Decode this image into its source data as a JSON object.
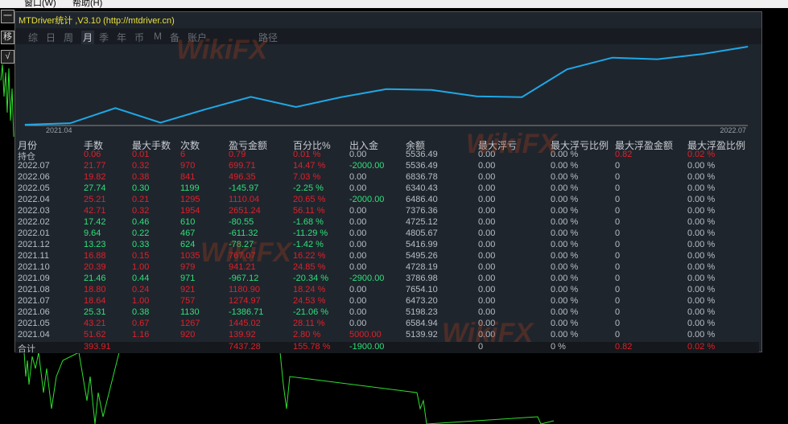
{
  "menu": [
    "窗口(W)",
    "帮助(H)"
  ],
  "side_buttons": [
    "一",
    "移",
    "√"
  ],
  "window_title": "MTDriver统计 ,V3.10 (http://mtdriver.cn)",
  "tabs": [
    {
      "label": "综"
    },
    {
      "label": "日"
    },
    {
      "label": "周"
    },
    {
      "label": "月",
      "active": true
    },
    {
      "label": "季"
    },
    {
      "label": "年"
    },
    {
      "label": "币"
    },
    {
      "label": "M"
    },
    {
      "label": "备"
    },
    {
      "label": "账户"
    },
    {
      "label": "路径"
    }
  ],
  "watermark": "WikiFX",
  "colors": {
    "profit": "#e0202a",
    "loss": "#2ee07a",
    "line": "#1ea8e6",
    "bg": "#1f252d"
  },
  "chart_data": {
    "type": "line",
    "x": [
      "",
      "2021.04",
      "2021.05",
      "2021.06",
      "2021.07",
      "2021.08",
      "2021.09",
      "2021.10",
      "2021.11",
      "2021.12",
      "2022.01",
      "2022.02",
      "2022.03",
      "2022.04",
      "2022.05",
      "2022.06",
      "2022.07"
    ],
    "values": [
      0,
      139.92,
      1584.94,
      198.23,
      1473.2,
      2654.1,
      1686.98,
      2628.19,
      3395.26,
      3316.99,
      2705.67,
      2625.12,
      5276.36,
      6386.4,
      6240.43,
      6736.78,
      7436.49
    ],
    "x_tick_labels": [
      "2021.04",
      "2022.07"
    ],
    "grid": false
  },
  "table": {
    "headers": [
      "月份",
      "手数",
      "最大手数",
      "次数",
      "盈亏金额",
      "百分比%",
      "出入金",
      "余额",
      "最大浮亏",
      "最大浮亏比例",
      "最大浮盈金额",
      "最大浮盈比例"
    ],
    "rows": [
      {
        "c": [
          "持仓",
          "0.06",
          "0.01",
          "6",
          "0.79",
          "0.01 %",
          "0.00",
          "5536.49",
          "0.00",
          "0.00 %",
          "0.82",
          "0.02 %"
        ],
        "s": "r",
        "fx": "w",
        "fl": "r"
      },
      {
        "c": [
          "2022.07",
          "21.77",
          "0.32",
          "970",
          "699.71",
          "14.47 %",
          "-2000.00",
          "5536.49",
          "0.00",
          "0.00 %",
          "0",
          "0.00 %"
        ],
        "s": "r",
        "fx": "g"
      },
      {
        "c": [
          "2022.06",
          "19.82",
          "0.38",
          "841",
          "496.35",
          "7.03 %",
          "0.00",
          "6836.78",
          "0.00",
          "0.00 %",
          "0",
          "0.00 %"
        ],
        "s": "r",
        "fx": "w"
      },
      {
        "c": [
          "2022.05",
          "27.74",
          "0.30",
          "1199",
          "-145.97",
          "-2.25 %",
          "0.00",
          "6340.43",
          "0.00",
          "0.00 %",
          "0",
          "0.00 %"
        ],
        "s": "g",
        "fx": "w"
      },
      {
        "c": [
          "2022.04",
          "25.21",
          "0.21",
          "1295",
          "1110.04",
          "20.65 %",
          "-2000.00",
          "6486.40",
          "0.00",
          "0.00 %",
          "0",
          "0.00 %"
        ],
        "s": "r",
        "fx": "g"
      },
      {
        "c": [
          "2022.03",
          "42.71",
          "0.32",
          "1954",
          "2651.24",
          "56.11 %",
          "0.00",
          "7376.36",
          "0.00",
          "0.00 %",
          "0",
          "0.00 %"
        ],
        "s": "r",
        "fx": "w"
      },
      {
        "c": [
          "2022.02",
          "17.42",
          "0.46",
          "610",
          "-80.55",
          "-1.68 %",
          "0.00",
          "4725.12",
          "0.00",
          "0.00 %",
          "0",
          "0.00 %"
        ],
        "s": "g",
        "fx": "w"
      },
      {
        "c": [
          "2022.01",
          "9.64",
          "0.22",
          "467",
          "-611.32",
          "-11.29 %",
          "0.00",
          "4805.67",
          "0.00",
          "0.00 %",
          "0",
          "0.00 %"
        ],
        "s": "g",
        "fx": "w"
      },
      {
        "c": [
          "2021.12",
          "13.23",
          "0.33",
          "624",
          "-78.27",
          "-1.42 %",
          "0.00",
          "5416.99",
          "0.00",
          "0.00 %",
          "0",
          "0.00 %"
        ],
        "s": "g",
        "fx": "w"
      },
      {
        "c": [
          "2021.11",
          "16.88",
          "0.15",
          "1035",
          "767.07",
          "16.22 %",
          "0.00",
          "5495.26",
          "0.00",
          "0.00 %",
          "0",
          "0.00 %"
        ],
        "s": "r",
        "fx": "w"
      },
      {
        "c": [
          "2021.10",
          "20.39",
          "1.00",
          "979",
          "941.21",
          "24.85 %",
          "0.00",
          "4728.19",
          "0.00",
          "0.00 %",
          "0",
          "0.00 %"
        ],
        "s": "r",
        "fx": "w"
      },
      {
        "c": [
          "2021.09",
          "21.46",
          "0.44",
          "971",
          "-967.12",
          "-20.34 %",
          "-2900.00",
          "3786.98",
          "0.00",
          "0.00 %",
          "0",
          "0.00 %"
        ],
        "s": "g",
        "fx": "g"
      },
      {
        "c": [
          "2021.08",
          "18.80",
          "0.24",
          "921",
          "1180.90",
          "18.24 %",
          "0.00",
          "7654.10",
          "0.00",
          "0.00 %",
          "0",
          "0.00 %"
        ],
        "s": "r",
        "fx": "w"
      },
      {
        "c": [
          "2021.07",
          "18.64",
          "1.00",
          "757",
          "1274.97",
          "24.53 %",
          "0.00",
          "6473.20",
          "0.00",
          "0.00 %",
          "0",
          "0.00 %"
        ],
        "s": "r",
        "fx": "w"
      },
      {
        "c": [
          "2021.06",
          "25.31",
          "0.38",
          "1130",
          "-1386.71",
          "-21.06 %",
          "0.00",
          "5198.23",
          "0.00",
          "0.00 %",
          "0",
          "0.00 %"
        ],
        "s": "g",
        "fx": "w"
      },
      {
        "c": [
          "2021.05",
          "43.21",
          "0.67",
          "1267",
          "1445.02",
          "28.11 %",
          "0.00",
          "6584.94",
          "0.00",
          "0.00 %",
          "0",
          "0.00 %"
        ],
        "s": "r",
        "fx": "w"
      },
      {
        "c": [
          "2021.04",
          "51.62",
          "1.16",
          "920",
          "139.92",
          "2.80 %",
          "5000.00",
          "5139.92",
          "0.00",
          "0.00 %",
          "0",
          "0.00 %"
        ],
        "s": "r",
        "fx": "r"
      }
    ],
    "total": [
      "合计",
      "393.91",
      "",
      "",
      "7437.28",
      "155.78 %",
      "-1900.00",
      "",
      "0",
      "0 %",
      "0.82",
      "0.02 %"
    ]
  }
}
